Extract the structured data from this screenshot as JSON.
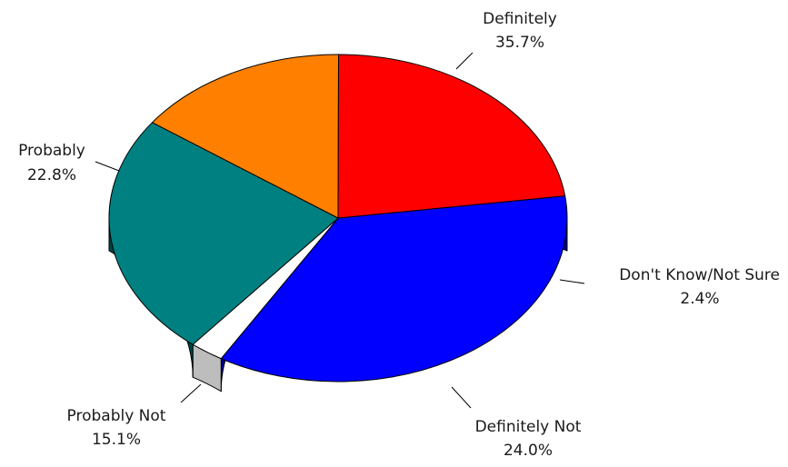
{
  "chart_data": {
    "type": "pie",
    "title": "",
    "slices": [
      {
        "label": "Definitely",
        "value": 35.7,
        "value_label": "35.7%",
        "color": "#0000ff",
        "side_color": "#00008b"
      },
      {
        "label": "Don't Know/Not Sure",
        "value": 2.4,
        "value_label": "2.4%",
        "color": "#ffffff",
        "side_color": "#bdbdbd"
      },
      {
        "label": "Definitely Not",
        "value": 24.0,
        "value_label": "24.0%",
        "color": "#008080",
        "side_color": "#004444"
      },
      {
        "label": "Probably Not",
        "value": 15.1,
        "value_label": "15.1%",
        "color": "#ff8000",
        "side_color": "#804000"
      },
      {
        "label": "Probably",
        "value": 22.8,
        "value_label": "22.8%",
        "color": "#ff0000",
        "side_color": "#800000"
      }
    ],
    "legend": "none",
    "style": "3d"
  }
}
